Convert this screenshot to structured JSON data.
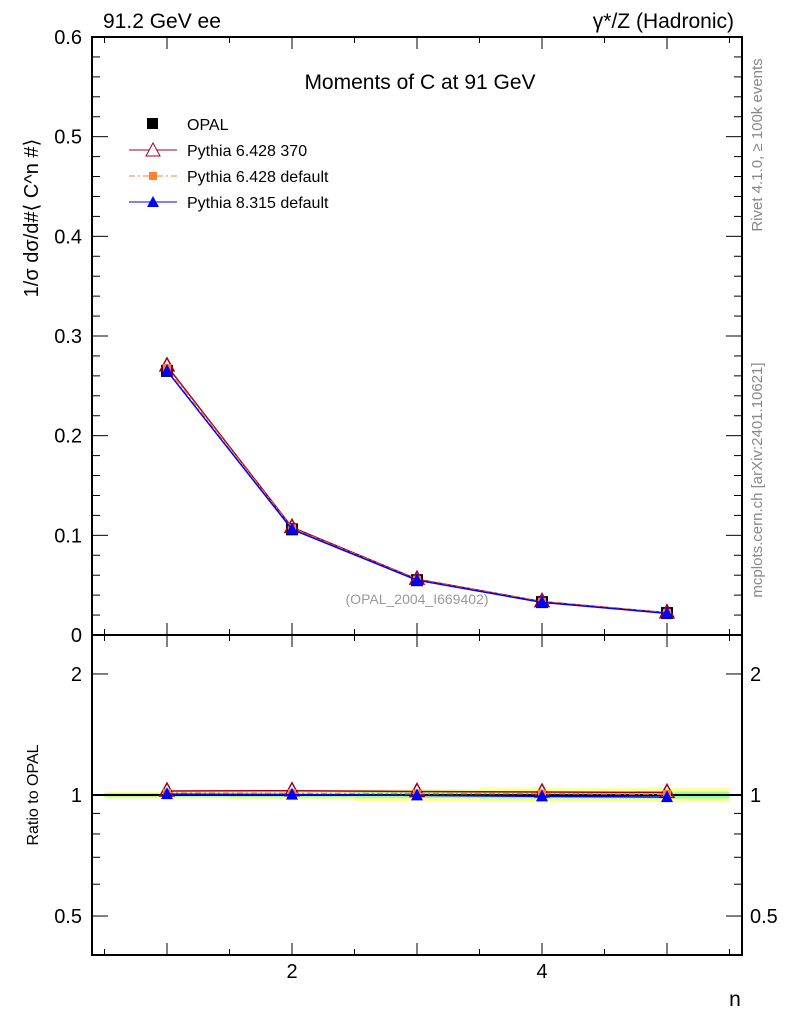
{
  "header": {
    "left": "91.2 GeV ee",
    "right": "γ*/Z (Hadronic)"
  },
  "side": {
    "rivet": "Rivet 4.1.0, ≥ 100k events",
    "mcplots": "mcplots.cern.ch [arXiv:2401.10621]"
  },
  "colors": {
    "opal": "#000000",
    "p6_370": "#a00020",
    "p6_def": "#ff8030",
    "p8": "#0000ff",
    "band1": "#ffff99",
    "band2": "#99ff99"
  },
  "chart_data": [
    {
      "type": "line",
      "title": "Moments of C at 91 GeV",
      "ylabel": "1/σ  dσ/d#⟨ C^n #⟩",
      "xlabel": "n",
      "xlim": [
        0.4,
        5.6
      ],
      "ylim": [
        0,
        0.6
      ],
      "yticks": [
        "0",
        "0.1",
        "0.2",
        "0.3",
        "0.4",
        "0.5",
        "0.6"
      ],
      "watermark": "(OPAL_2004_I669402)",
      "x": [
        1,
        2,
        3,
        4,
        5
      ],
      "series": [
        {
          "name": "OPAL",
          "values": [
            0.265,
            0.106,
            0.055,
            0.033,
            0.022
          ]
        },
        {
          "name": "Pythia 6.428 370",
          "values": [
            0.27,
            0.108,
            0.056,
            0.0335,
            0.0223
          ]
        },
        {
          "name": "Pythia 6.428 default",
          "values": [
            0.268,
            0.107,
            0.0555,
            0.0333,
            0.0222
          ]
        },
        {
          "name": "Pythia 8.315 default",
          "values": [
            0.265,
            0.106,
            0.055,
            0.0327,
            0.0217
          ]
        }
      ],
      "legend": "top-left"
    },
    {
      "type": "line",
      "ylabel": "Ratio to OPAL",
      "xlabel": "n",
      "ylim": [
        0.4,
        2.5
      ],
      "yscale": "log",
      "yticks": [
        "0.5",
        "1",
        "2"
      ],
      "xticks": [
        "2",
        "4"
      ],
      "x": [
        1,
        2,
        3,
        4,
        5
      ],
      "series": [
        {
          "name": "Pythia 6.428 370",
          "values": [
            1.023,
            1.025,
            1.02,
            1.017,
            1.015
          ]
        },
        {
          "name": "Pythia 6.428 default",
          "values": [
            1.012,
            1.01,
            1.008,
            1.008,
            1.005
          ]
        },
        {
          "name": "Pythia 8.315 default",
          "values": [
            1.005,
            1.002,
            0.998,
            0.992,
            0.988
          ]
        }
      ],
      "band_half_widths": [
        0.02,
        0.025,
        0.035,
        0.04,
        0.04
      ]
    }
  ]
}
